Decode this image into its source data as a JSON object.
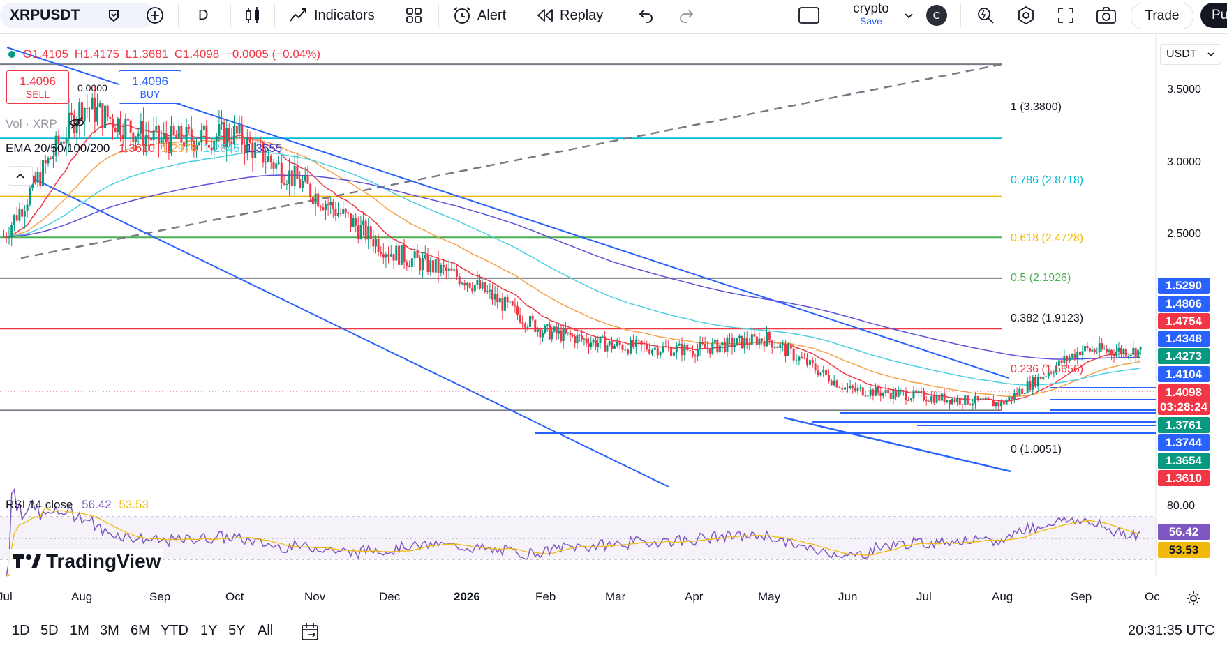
{
  "toolbar": {
    "symbol": "XRPUSDT",
    "interval": "D",
    "indicators_label": "Indicators",
    "alert_label": "Alert",
    "replay_label": "Replay",
    "layout_name": "crypto",
    "save_label": "Save",
    "avatar_letter": "C",
    "trade_label": "Trade",
    "publish_label": "Pu"
  },
  "ohlc": {
    "open": "O1.4105",
    "high": "H1.4175",
    "low": "L1.3681",
    "close": "C1.4098",
    "change": "−0.0005 (−0.04%)"
  },
  "trade": {
    "sell_price": "1.4096",
    "sell_label": "SELL",
    "spread": "0.0000",
    "buy_price": "1.4096",
    "buy_label": "BUY"
  },
  "volume_label": "Vol · XRP",
  "ema": {
    "label": "EMA 20/50/100/200",
    "v20": "1.3610",
    "v50": "1.2978",
    "v100": "1.2645",
    "v200": "1.3555"
  },
  "rsi": {
    "label": "RSI 14 close",
    "value": "56.42",
    "ma": "53.53",
    "axis_top": "80.00"
  },
  "currency": "USDT",
  "price_axis": [
    "3.5000",
    "3.0000",
    "2.5000"
  ],
  "price_tags": [
    {
      "value": "1.5290",
      "color": "#2962ff"
    },
    {
      "value": "1.4806",
      "color": "#2962ff"
    },
    {
      "value": "1.4754",
      "color": "#f23645"
    },
    {
      "value": "1.4348",
      "color": "#2962ff"
    },
    {
      "value": "1.4273",
      "color": "#089981"
    },
    {
      "value": "1.4104",
      "color": "#2962ff"
    },
    {
      "value": "1.4098",
      "color": "#f23645"
    },
    {
      "value": "03:28:24",
      "color": "#f23645"
    },
    {
      "value": "1.3761",
      "color": "#089981"
    },
    {
      "value": "1.3744",
      "color": "#2962ff"
    },
    {
      "value": "1.3654",
      "color": "#089981"
    },
    {
      "value": "1.3610",
      "color": "#f23645"
    }
  ],
  "fib_levels": [
    {
      "label": "1 (3.3800)",
      "color": "#787b86"
    },
    {
      "label": "0.786 (2.8718)",
      "color": "#00bcd4"
    },
    {
      "label": "0.618 (2.4728)",
      "color": "#f0b90b"
    },
    {
      "label": "0.5 (2.1926)",
      "color": "#4caf50"
    },
    {
      "label": "0.382 (1.9123)",
      "color": "#787b86"
    },
    {
      "label": "0.236 (1.5656)",
      "color": "#f23645"
    },
    {
      "label": "0 (1.0051)",
      "color": "#787b86"
    }
  ],
  "time_axis": [
    "Jul",
    "Aug",
    "Sep",
    "Oct",
    "Nov",
    "Dec",
    "2026",
    "Feb",
    "Mar",
    "Apr",
    "May",
    "Jun",
    "Jul",
    "Aug",
    "Sep",
    "Oc"
  ],
  "ranges": [
    "1D",
    "5D",
    "1M",
    "3M",
    "6M",
    "YTD",
    "1Y",
    "5Y",
    "All"
  ],
  "clock": "20:31:35 UTC",
  "watermark": "TradingView",
  "colors": {
    "up": "#089981",
    "down": "#f23645",
    "ema20": "#f23645",
    "ema50": "#f7a24d",
    "ema100": "#4dd0e1",
    "ema200": "#5b51d8",
    "channel": "#2962ff",
    "rsi": "#7e57c2",
    "rsi_ma": "#f0b90b"
  },
  "chart_data": {
    "type": "candlestick",
    "symbol": "XRPUSDT",
    "interval": "1D",
    "x_ticks": [
      "Jul",
      "Aug",
      "Sep",
      "Oct",
      "Nov",
      "Dec",
      "2026",
      "Feb",
      "Mar",
      "Apr",
      "May",
      "Jun",
      "Jul",
      "Aug",
      "Sep",
      "Oc"
    ],
    "price_anchors": [
      {
        "month": "Jul",
        "close": 2.2
      },
      {
        "month": "Aug",
        "close": 3.1
      },
      {
        "month": "Sep",
        "close": 2.85
      },
      {
        "month": "Oct",
        "close": 2.9
      },
      {
        "month": "Nov",
        "close": 2.5
      },
      {
        "month": "Dec",
        "close": 2.1
      },
      {
        "month": "2026",
        "close": 1.9
      },
      {
        "month": "Feb",
        "close": 1.55
      },
      {
        "month": "Mar",
        "close": 1.45
      },
      {
        "month": "Apr",
        "close": 1.42
      },
      {
        "month": "May",
        "close": 1.5
      },
      {
        "month": "Jun",
        "close": 1.15
      },
      {
        "month": "Jul",
        "close": 1.1
      },
      {
        "month": "Aug",
        "close": 1.05
      },
      {
        "month": "Sep",
        "close": 1.42
      },
      {
        "month": "Oc",
        "close": 1.4098
      }
    ],
    "fibonacci": [
      {
        "ratio": 1,
        "price": 3.38
      },
      {
        "ratio": 0.786,
        "price": 2.8718
      },
      {
        "ratio": 0.618,
        "price": 2.4728
      },
      {
        "ratio": 0.5,
        "price": 2.1926
      },
      {
        "ratio": 0.382,
        "price": 1.9123
      },
      {
        "ratio": 0.236,
        "price": 1.5656
      },
      {
        "ratio": 0,
        "price": 1.0051
      }
    ],
    "ohlc_last": {
      "open": 1.4105,
      "high": 1.4175,
      "low": 1.3681,
      "close": 1.4098
    },
    "ema": {
      "ema20": 1.361,
      "ema50": 1.2978,
      "ema100": 1.2645,
      "ema200": 1.3555
    },
    "rsi": {
      "period": 14,
      "value": 56.42,
      "ma": 53.53
    },
    "y_ticks": [
      3.5,
      3.0,
      2.5
    ]
  }
}
